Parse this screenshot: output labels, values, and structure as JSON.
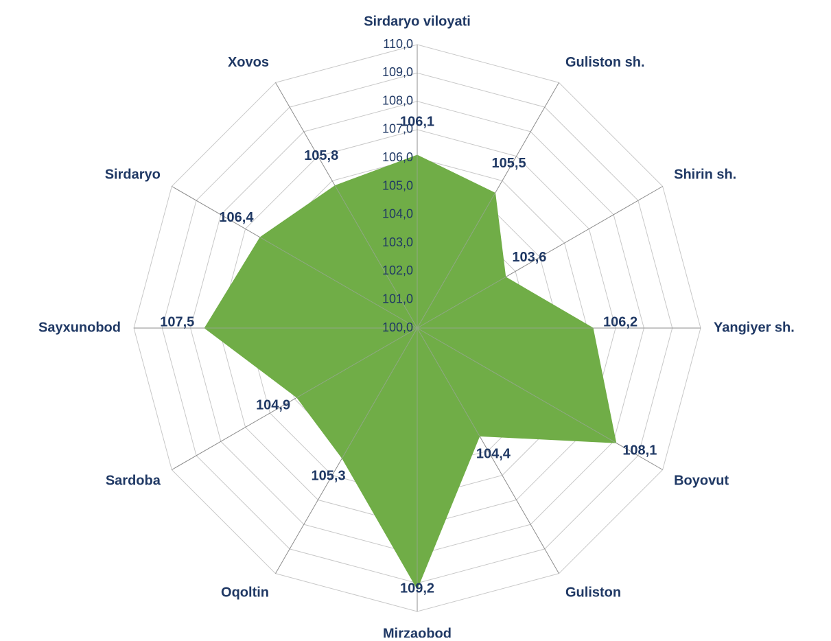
{
  "chart_data": {
    "type": "radar",
    "categories": [
      "Sirdaryo viloyati",
      "Guliston  sh.",
      "Shirin   sh.",
      "Yangiyer   sh.",
      "Boyovut",
      "Guliston",
      "Mirzaobod",
      "Oqoltin",
      "Sardoba",
      "Sayxunobod",
      "Sirdaryo",
      "Xovos"
    ],
    "values": [
      106.1,
      105.5,
      103.6,
      106.2,
      108.1,
      104.4,
      109.2,
      105.3,
      104.9,
      107.5,
      106.4,
      105.8
    ],
    "value_labels": [
      "106,1",
      "105,5",
      "103,6",
      "106,2",
      "108,1",
      "104,4",
      "109,2",
      "105,3",
      "104,9",
      "107,5",
      "106,4",
      "105,8"
    ],
    "color": "#70ad47",
    "rlim": [
      100,
      110
    ],
    "rticks": [
      {
        "value": 100,
        "label": "100,0"
      },
      {
        "value": 101,
        "label": "101,0"
      },
      {
        "value": 102,
        "label": "102,0"
      },
      {
        "value": 103,
        "label": "103,0"
      },
      {
        "value": 104,
        "label": "104,0"
      },
      {
        "value": 105,
        "label": "105,0"
      },
      {
        "value": 106,
        "label": "106,0"
      },
      {
        "value": 107,
        "label": "107,0"
      },
      {
        "value": 108,
        "label": "108,0"
      },
      {
        "value": 109,
        "label": "109,0"
      },
      {
        "value": 110,
        "label": "110,0"
      }
    ],
    "grid": true
  }
}
